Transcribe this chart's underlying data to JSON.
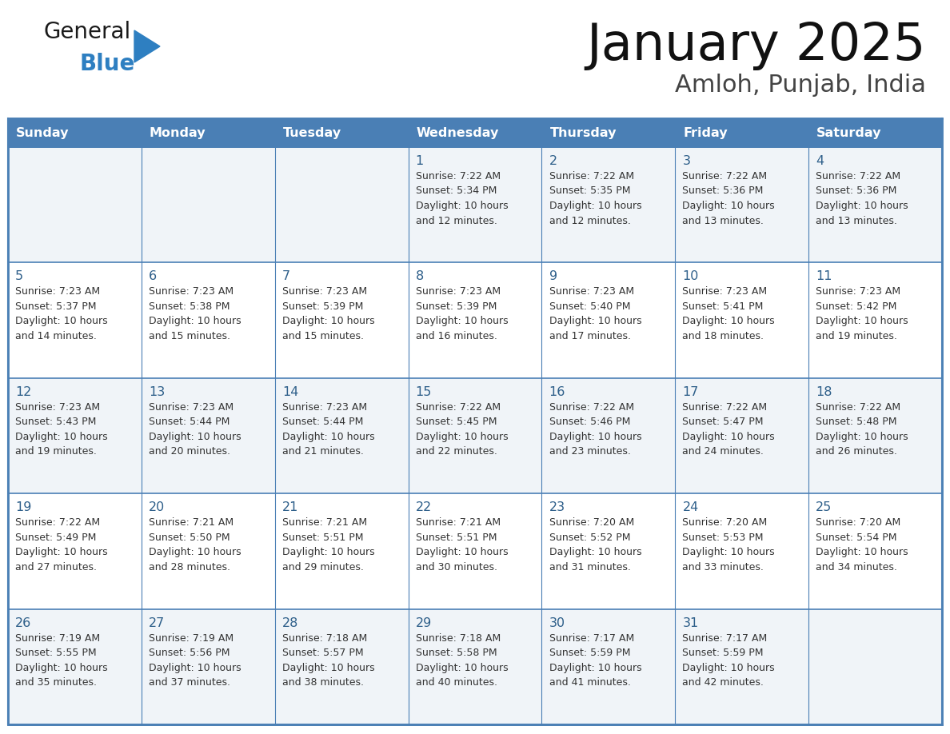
{
  "title": "January 2025",
  "subtitle": "Amloh, Punjab, India",
  "header_bg": "#4a7fb5",
  "header_text_color": "#ffffff",
  "row_bg_odd": "#f0f4f8",
  "row_bg_even": "#ffffff",
  "border_color": "#4a7fb5",
  "day_num_color": "#2e5f8a",
  "text_color": "#333333",
  "days_of_week": [
    "Sunday",
    "Monday",
    "Tuesday",
    "Wednesday",
    "Thursday",
    "Friday",
    "Saturday"
  ],
  "logo_general_color": "#1a1a1a",
  "logo_blue_color": "#2e7fc1",
  "calendar_data": [
    [
      {
        "day": "",
        "info": ""
      },
      {
        "day": "",
        "info": ""
      },
      {
        "day": "",
        "info": ""
      },
      {
        "day": "1",
        "info": "Sunrise: 7:22 AM\nSunset: 5:34 PM\nDaylight: 10 hours\nand 12 minutes."
      },
      {
        "day": "2",
        "info": "Sunrise: 7:22 AM\nSunset: 5:35 PM\nDaylight: 10 hours\nand 12 minutes."
      },
      {
        "day": "3",
        "info": "Sunrise: 7:22 AM\nSunset: 5:36 PM\nDaylight: 10 hours\nand 13 minutes."
      },
      {
        "day": "4",
        "info": "Sunrise: 7:22 AM\nSunset: 5:36 PM\nDaylight: 10 hours\nand 13 minutes."
      }
    ],
    [
      {
        "day": "5",
        "info": "Sunrise: 7:23 AM\nSunset: 5:37 PM\nDaylight: 10 hours\nand 14 minutes."
      },
      {
        "day": "6",
        "info": "Sunrise: 7:23 AM\nSunset: 5:38 PM\nDaylight: 10 hours\nand 15 minutes."
      },
      {
        "day": "7",
        "info": "Sunrise: 7:23 AM\nSunset: 5:39 PM\nDaylight: 10 hours\nand 15 minutes."
      },
      {
        "day": "8",
        "info": "Sunrise: 7:23 AM\nSunset: 5:39 PM\nDaylight: 10 hours\nand 16 minutes."
      },
      {
        "day": "9",
        "info": "Sunrise: 7:23 AM\nSunset: 5:40 PM\nDaylight: 10 hours\nand 17 minutes."
      },
      {
        "day": "10",
        "info": "Sunrise: 7:23 AM\nSunset: 5:41 PM\nDaylight: 10 hours\nand 18 minutes."
      },
      {
        "day": "11",
        "info": "Sunrise: 7:23 AM\nSunset: 5:42 PM\nDaylight: 10 hours\nand 19 minutes."
      }
    ],
    [
      {
        "day": "12",
        "info": "Sunrise: 7:23 AM\nSunset: 5:43 PM\nDaylight: 10 hours\nand 19 minutes."
      },
      {
        "day": "13",
        "info": "Sunrise: 7:23 AM\nSunset: 5:44 PM\nDaylight: 10 hours\nand 20 minutes."
      },
      {
        "day": "14",
        "info": "Sunrise: 7:23 AM\nSunset: 5:44 PM\nDaylight: 10 hours\nand 21 minutes."
      },
      {
        "day": "15",
        "info": "Sunrise: 7:22 AM\nSunset: 5:45 PM\nDaylight: 10 hours\nand 22 minutes."
      },
      {
        "day": "16",
        "info": "Sunrise: 7:22 AM\nSunset: 5:46 PM\nDaylight: 10 hours\nand 23 minutes."
      },
      {
        "day": "17",
        "info": "Sunrise: 7:22 AM\nSunset: 5:47 PM\nDaylight: 10 hours\nand 24 minutes."
      },
      {
        "day": "18",
        "info": "Sunrise: 7:22 AM\nSunset: 5:48 PM\nDaylight: 10 hours\nand 26 minutes."
      }
    ],
    [
      {
        "day": "19",
        "info": "Sunrise: 7:22 AM\nSunset: 5:49 PM\nDaylight: 10 hours\nand 27 minutes."
      },
      {
        "day": "20",
        "info": "Sunrise: 7:21 AM\nSunset: 5:50 PM\nDaylight: 10 hours\nand 28 minutes."
      },
      {
        "day": "21",
        "info": "Sunrise: 7:21 AM\nSunset: 5:51 PM\nDaylight: 10 hours\nand 29 minutes."
      },
      {
        "day": "22",
        "info": "Sunrise: 7:21 AM\nSunset: 5:51 PM\nDaylight: 10 hours\nand 30 minutes."
      },
      {
        "day": "23",
        "info": "Sunrise: 7:20 AM\nSunset: 5:52 PM\nDaylight: 10 hours\nand 31 minutes."
      },
      {
        "day": "24",
        "info": "Sunrise: 7:20 AM\nSunset: 5:53 PM\nDaylight: 10 hours\nand 33 minutes."
      },
      {
        "day": "25",
        "info": "Sunrise: 7:20 AM\nSunset: 5:54 PM\nDaylight: 10 hours\nand 34 minutes."
      }
    ],
    [
      {
        "day": "26",
        "info": "Sunrise: 7:19 AM\nSunset: 5:55 PM\nDaylight: 10 hours\nand 35 minutes."
      },
      {
        "day": "27",
        "info": "Sunrise: 7:19 AM\nSunset: 5:56 PM\nDaylight: 10 hours\nand 37 minutes."
      },
      {
        "day": "28",
        "info": "Sunrise: 7:18 AM\nSunset: 5:57 PM\nDaylight: 10 hours\nand 38 minutes."
      },
      {
        "day": "29",
        "info": "Sunrise: 7:18 AM\nSunset: 5:58 PM\nDaylight: 10 hours\nand 40 minutes."
      },
      {
        "day": "30",
        "info": "Sunrise: 7:17 AM\nSunset: 5:59 PM\nDaylight: 10 hours\nand 41 minutes."
      },
      {
        "day": "31",
        "info": "Sunrise: 7:17 AM\nSunset: 5:59 PM\nDaylight: 10 hours\nand 42 minutes."
      },
      {
        "day": "",
        "info": ""
      }
    ]
  ]
}
